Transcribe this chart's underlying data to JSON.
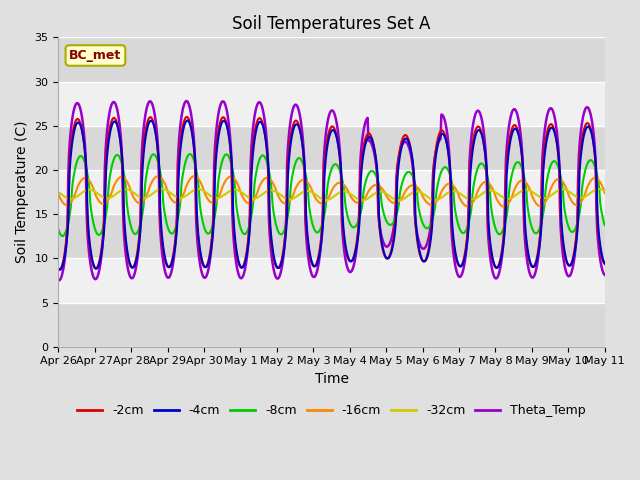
{
  "title": "Soil Temperatures Set A",
  "xlabel": "Time",
  "ylabel": "Soil Temperature (C)",
  "ylim": [
    0,
    35
  ],
  "yticks": [
    0,
    5,
    10,
    15,
    20,
    25,
    30,
    35
  ],
  "annotation": "BC_met",
  "series": [
    {
      "label": "-2cm",
      "color": "#dd0000",
      "lw": 1.5
    },
    {
      "label": "-4cm",
      "color": "#0000cc",
      "lw": 1.5
    },
    {
      "label": "-8cm",
      "color": "#00cc00",
      "lw": 1.5
    },
    {
      "label": "-16cm",
      "color": "#ff8800",
      "lw": 1.5
    },
    {
      "label": "-32cm",
      "color": "#cccc00",
      "lw": 1.5
    },
    {
      "label": "Theta_Temp",
      "color": "#9900cc",
      "lw": 1.8
    }
  ],
  "tick_labels": [
    "Apr 26",
    "Apr 27",
    "Apr 28",
    "Apr 29",
    "Apr 30",
    "May 1",
    "May 2",
    "May 3",
    "May 4",
    "May 5",
    "May 6",
    "May 7",
    "May 8",
    "May 9",
    "May 10",
    "May 11"
  ],
  "bg_color": "#e0e0e0",
  "plot_bg_light": "#f0f0f0",
  "plot_bg_dark": "#d8d8d8",
  "grid_color": "#ffffff",
  "n_days": 15,
  "pts_per_day": 48
}
